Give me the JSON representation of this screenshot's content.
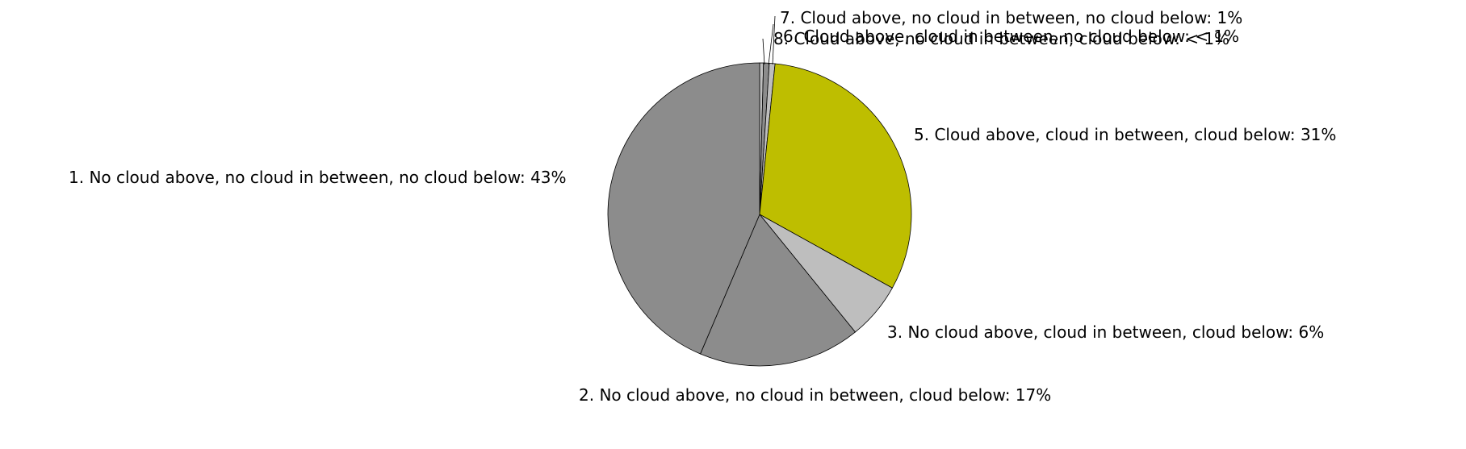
{
  "chart_data": {
    "type": "pie",
    "title": "",
    "start": "12 o'clock",
    "direction": "clockwise",
    "edge_color": "#000000",
    "slices": [
      {
        "label": "8. Cloud above, no cloud in between, cloud below: < 1%",
        "value": 0.4,
        "color": "#bebebe"
      },
      {
        "label": "6. Cloud above, cloud in between, no cloud below: < 1%",
        "value": 0.6,
        "color": "#8c8c8c"
      },
      {
        "label": "7. Cloud above, no cloud in between, no cloud below: 1%",
        "value": 0.6,
        "color": "#bebebe"
      },
      {
        "label": "5. Cloud above, cloud in between, cloud below: 31%",
        "value": 31,
        "color": "#bebe00"
      },
      {
        "label": "3. No cloud above, cloud in between, cloud below: 6%",
        "value": 6,
        "color": "#bebebe"
      },
      {
        "label": "2. No cloud above, no cloud in between, cloud below: 17%",
        "value": 17,
        "color": "#8c8c8c"
      },
      {
        "label": "1. No cloud above, no cloud in between, no cloud below: 43%",
        "value": 43,
        "color": "#8c8c8c"
      }
    ]
  }
}
